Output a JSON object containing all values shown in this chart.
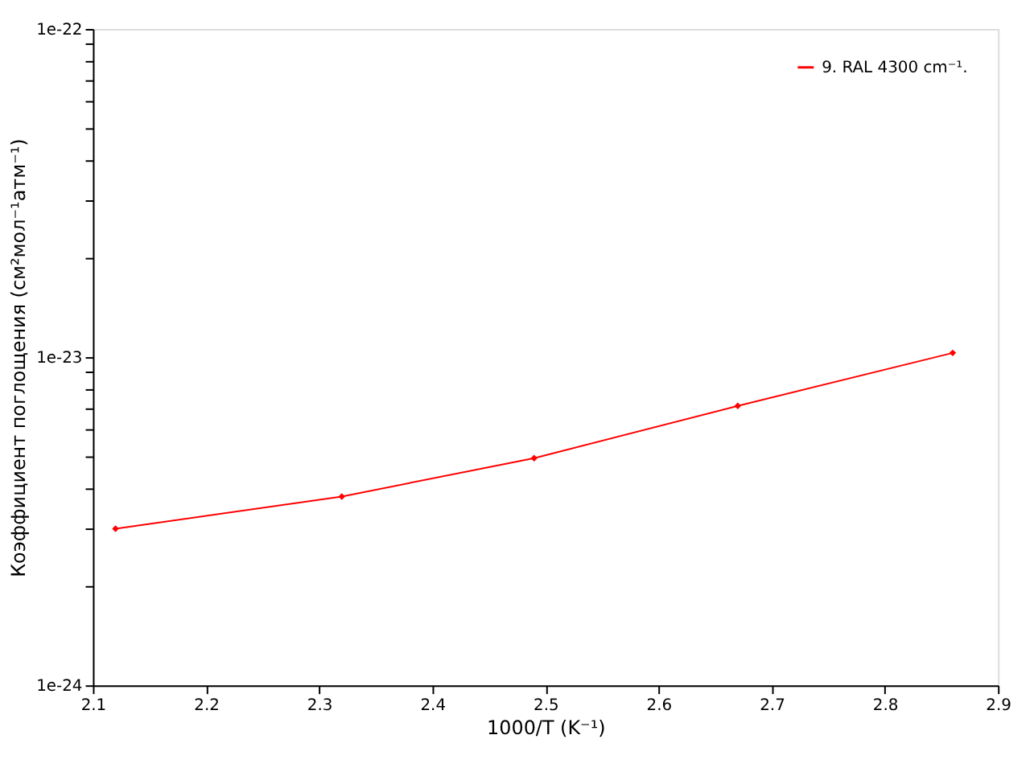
{
  "chart_data": {
    "type": "line",
    "xlabel": "1000/T (K⁻¹)",
    "ylabel": "Коэффициент поглощения (см²мол⁻¹атм⁻¹)",
    "x": [
      2.12,
      2.32,
      2.49,
      2.67,
      2.86
    ],
    "series": [
      {
        "name": "9. RAL 4300 cm⁻¹.",
        "color": "#ff0000",
        "values": [
          3e-24,
          3.76e-24,
          4.92e-24,
          7.1e-24,
          1.03e-23
        ]
      }
    ],
    "log": "y",
    "xlim": [
      2.1,
      2.9
    ],
    "xticks": [
      2.1,
      2.2,
      2.3,
      2.4,
      2.5,
      2.6,
      2.7,
      2.8,
      2.9
    ],
    "ylim": [
      1e-24,
      1e-22
    ],
    "yticks": [
      1e-24,
      {
        "value": 2e-24,
        "label": null
      },
      {
        "value": 3e-24,
        "label": null
      },
      {
        "value": 4e-24,
        "label": null
      },
      {
        "value": 5e-24,
        "label": null
      },
      {
        "value": 6e-24,
        "label": null
      },
      {
        "value": 7e-24,
        "label": null
      },
      {
        "value": 8e-24,
        "label": null
      },
      {
        "value": 9e-24,
        "label": null
      },
      1e-23,
      {
        "value": 2e-23,
        "label": null
      },
      {
        "value": 3e-23,
        "label": null
      },
      {
        "value": 4e-23,
        "label": null
      },
      {
        "value": 5e-23,
        "label": null
      },
      {
        "value": 6e-23,
        "label": null
      },
      {
        "value": 7e-23,
        "label": null
      },
      {
        "value": 8e-23,
        "label": null
      },
      {
        "value": 9e-23,
        "label": null
      },
      1e-22
    ],
    "grid": false,
    "legend": "top right",
    "marker": "diamond",
    "line_style": "solid"
  }
}
